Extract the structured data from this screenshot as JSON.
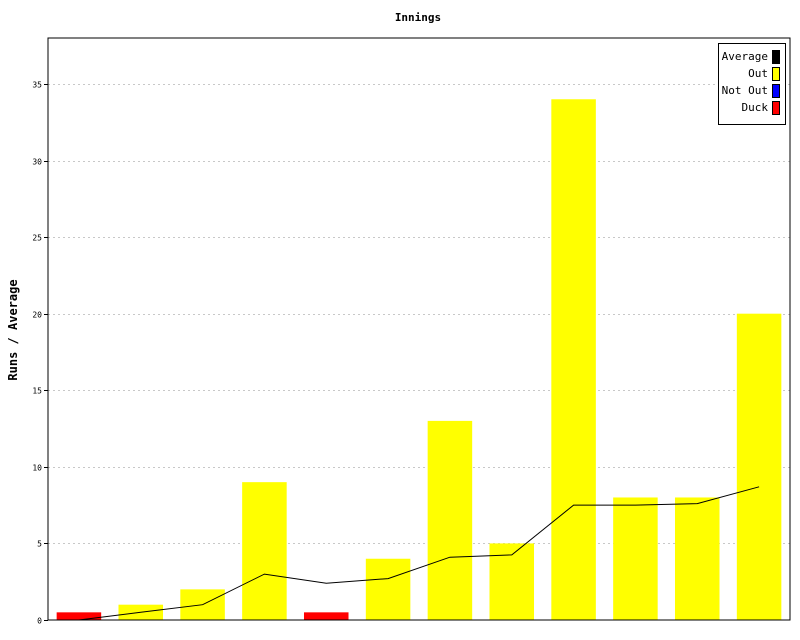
{
  "chart_data": {
    "type": "bar",
    "title": "Innings",
    "xlabel": "",
    "ylabel": "Runs / Average",
    "ylim": [
      0,
      38
    ],
    "yticks": [
      0,
      5,
      10,
      15,
      20,
      25,
      30,
      35
    ],
    "grid": true,
    "legend_position": "top-right",
    "bars": [
      {
        "value": 0.5,
        "status": "Duck"
      },
      {
        "value": 1,
        "status": "Out"
      },
      {
        "value": 2,
        "status": "Out"
      },
      {
        "value": 9,
        "status": "Out"
      },
      {
        "value": 0.5,
        "status": "Duck"
      },
      {
        "value": 4,
        "status": "Out"
      },
      {
        "value": 13,
        "status": "Out"
      },
      {
        "value": 5,
        "status": "Out"
      },
      {
        "value": 34,
        "status": "Out"
      },
      {
        "value": 8,
        "status": "Out"
      },
      {
        "value": 8,
        "status": "Out"
      },
      {
        "value": 20,
        "status": "Out"
      }
    ],
    "average": [
      0,
      0.5,
      1,
      3,
      2.4,
      2.7,
      4.1,
      4.25,
      7.5,
      7.5,
      7.6,
      8.7
    ],
    "legend": [
      {
        "label": "Average",
        "color": "#000000"
      },
      {
        "label": "Out",
        "color": "#ffff00"
      },
      {
        "label": "Not Out",
        "color": "#0000ff"
      },
      {
        "label": "Duck",
        "color": "#ff0000"
      }
    ],
    "colors": {
      "Out": "#ffff00",
      "Not Out": "#0000ff",
      "Duck": "#ff0000",
      "Average": "#000000",
      "grid": "#c8c8c8"
    }
  }
}
